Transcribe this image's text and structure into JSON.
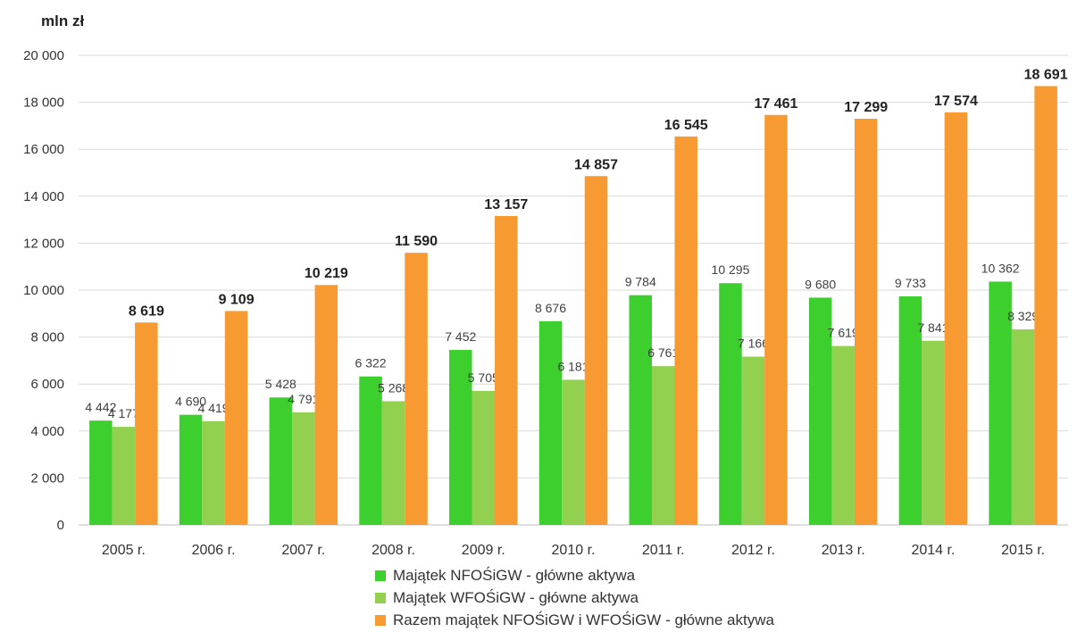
{
  "chart_data": {
    "type": "bar",
    "ylabel": "mln zł",
    "ylim": [
      0,
      20000
    ],
    "yticks": [
      0,
      2000,
      4000,
      6000,
      8000,
      10000,
      12000,
      14000,
      16000,
      18000,
      20000
    ],
    "ytick_labels": [
      "0",
      "2 000",
      "4 000",
      "6 000",
      "8 000",
      "10 000",
      "12 000",
      "14 000",
      "16 000",
      "18 000",
      "20 000"
    ],
    "grid": true,
    "legend_position": "bottom",
    "categories": [
      "2005 r.",
      "2006 r.",
      "2007 r.",
      "2008 r.",
      "2009 r.",
      "2010 r.",
      "2011 r.",
      "2012 r.",
      "2013 r.",
      "2014 r.",
      "2015 r."
    ],
    "series": [
      {
        "name": "Majątek NFOŚiGW - główne aktywa",
        "color": "#3DCF2E",
        "values": [
          4442,
          4690,
          5428,
          6322,
          7452,
          8676,
          9784,
          10295,
          9680,
          9733,
          10362
        ],
        "labels": [
          "4 442",
          "4 690",
          "5 428",
          "6 322",
          "7 452",
          "8 676",
          "9 784",
          "10 295",
          "9 680",
          "9 733",
          "10 362"
        ]
      },
      {
        "name": "Majątek WFOŚiGW - główne aktywa",
        "color": "#92D050",
        "values": [
          4177,
          4419,
          4791,
          5268,
          5705,
          6181,
          6761,
          7166,
          7619,
          7841,
          8329
        ],
        "labels": [
          "4 177",
          "4 419",
          "4 791",
          "5 268",
          "5 705",
          "6 181",
          "6 761",
          "7 166",
          "7 619",
          "7 841",
          "8 329"
        ]
      },
      {
        "name": "Razem majątek NFOŚiGW i WFOŚiGW - główne aktywa",
        "color": "#F79A32",
        "values": [
          8619,
          9109,
          10219,
          11590,
          13157,
          14857,
          16545,
          17461,
          17299,
          17574,
          18691
        ],
        "labels": [
          "8 619",
          "9 109",
          "10 219",
          "11 590",
          "13 157",
          "14 857",
          "16 545",
          "17 461",
          "17 299",
          "17 574",
          "18 691"
        ]
      }
    ]
  }
}
